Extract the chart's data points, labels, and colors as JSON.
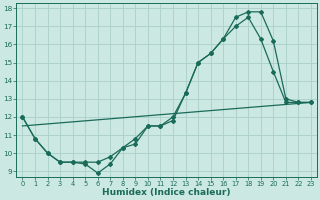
{
  "xlabel": "Humidex (Indice chaleur)",
  "bg_color": "#cce8e2",
  "grid_color": "#aad0c8",
  "line_color": "#1a6b5a",
  "xlim": [
    -0.5,
    23.5
  ],
  "ylim": [
    8.7,
    18.3
  ],
  "yticks": [
    9,
    10,
    11,
    12,
    13,
    14,
    15,
    16,
    17,
    18
  ],
  "xticks": [
    0,
    1,
    2,
    3,
    4,
    5,
    6,
    7,
    8,
    9,
    10,
    11,
    12,
    13,
    14,
    15,
    16,
    17,
    18,
    19,
    20,
    21,
    22,
    23
  ],
  "line1_x": [
    0,
    1,
    2,
    3,
    4,
    5,
    6,
    7,
    8,
    9,
    10,
    11,
    12,
    13,
    14,
    15,
    16,
    17,
    18,
    19,
    20,
    21,
    22,
    23
  ],
  "line1_y": [
    12.0,
    10.8,
    10.0,
    9.5,
    9.5,
    9.4,
    8.9,
    9.4,
    10.3,
    10.5,
    11.5,
    11.5,
    11.8,
    13.3,
    15.0,
    15.5,
    16.3,
    17.0,
    17.5,
    16.3,
    14.5,
    12.8,
    12.8,
    12.8
  ],
  "line2_x": [
    0,
    1,
    2,
    3,
    4,
    5,
    6,
    7,
    8,
    9,
    10,
    11,
    12,
    13,
    14,
    15,
    16,
    17,
    18,
    19,
    20,
    21,
    22,
    23
  ],
  "line2_y": [
    12.0,
    10.8,
    10.0,
    9.5,
    9.5,
    9.5,
    9.5,
    9.8,
    10.3,
    10.8,
    11.5,
    11.5,
    12.0,
    13.3,
    15.0,
    15.5,
    16.3,
    17.5,
    17.8,
    17.8,
    16.2,
    13.0,
    12.8,
    12.8
  ],
  "line3_x": [
    0,
    23
  ],
  "line3_y": [
    11.5,
    12.8
  ]
}
